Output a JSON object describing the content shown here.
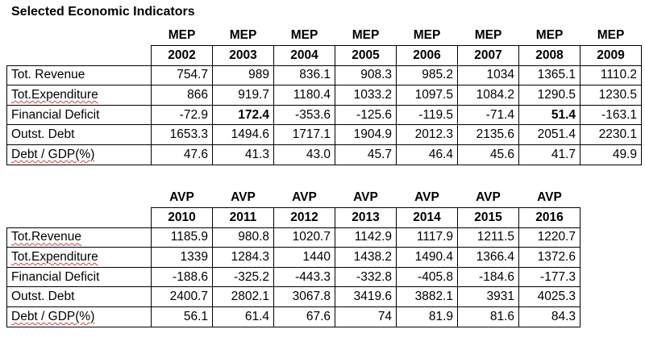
{
  "title": "Selected Economic Indicators",
  "row_labels": [
    "Tot. Revenue",
    "Tot.Expenditure",
    "Financial Deficit",
    "Outst. Debt",
    "Debt / GDP(%)"
  ],
  "row_labels_2": [
    "Tot.Revenue",
    "Tot.Expenditure",
    "Financial Deficit",
    "Outst. Debt",
    "Debt / GDP(%)"
  ],
  "table1": {
    "groups": [
      "MEP",
      "MEP",
      "MEP",
      "MEP",
      "MEP",
      "MEP",
      "MEP",
      "MEP"
    ],
    "years": [
      "2002",
      "2003",
      "2004",
      "2005",
      "2006",
      "2007",
      "2008",
      "2009"
    ],
    "rows": [
      [
        "754.7",
        "989",
        "836.1",
        "908.3",
        "985.2",
        "1034",
        "1365.1",
        "1110.2"
      ],
      [
        "866",
        "919.7",
        "1180.4",
        "1033.2",
        "1097.5",
        "1084.2",
        "1290.5",
        "1230.5"
      ],
      [
        "-72.9",
        "172.4",
        "-353.6",
        "-125.6",
        "-119.5",
        "-71.4",
        "51.4",
        "-163.1"
      ],
      [
        "1653.3",
        "1494.6",
        "1717.1",
        "1904.9",
        "2012.3",
        "2135.6",
        "2051.4",
        "2230.1"
      ],
      [
        "47.6",
        "41.3",
        "43.0",
        "45.7",
        "46.4",
        "45.6",
        "41.7",
        "49.9"
      ]
    ]
  },
  "table2": {
    "groups": [
      "AVP",
      "AVP",
      "AVP",
      "AVP",
      "AVP",
      "AVP",
      "AVP"
    ],
    "years": [
      "2010",
      "2011",
      "2012",
      "2013",
      "2014",
      "2015",
      "2016"
    ],
    "rows": [
      [
        "1185.9",
        "980.8",
        "1020.7",
        "1142.9",
        "1117.9",
        "1211.5",
        "1220.7"
      ],
      [
        "1339",
        "1284.3",
        "1440",
        "1438.2",
        "1490.4",
        "1366.4",
        "1372.6"
      ],
      [
        "-188.6",
        "-325.2",
        "-443.3",
        "-332.8",
        "-405.8",
        "-184.6",
        "-177.3"
      ],
      [
        "2400.7",
        "2802.1",
        "3067.8",
        "3419.6",
        "3882.1",
        "3931",
        "4025.3"
      ],
      [
        "56.1",
        "61.4",
        "67.6",
        "74",
        "81.9",
        "81.6",
        "84.3"
      ]
    ]
  }
}
